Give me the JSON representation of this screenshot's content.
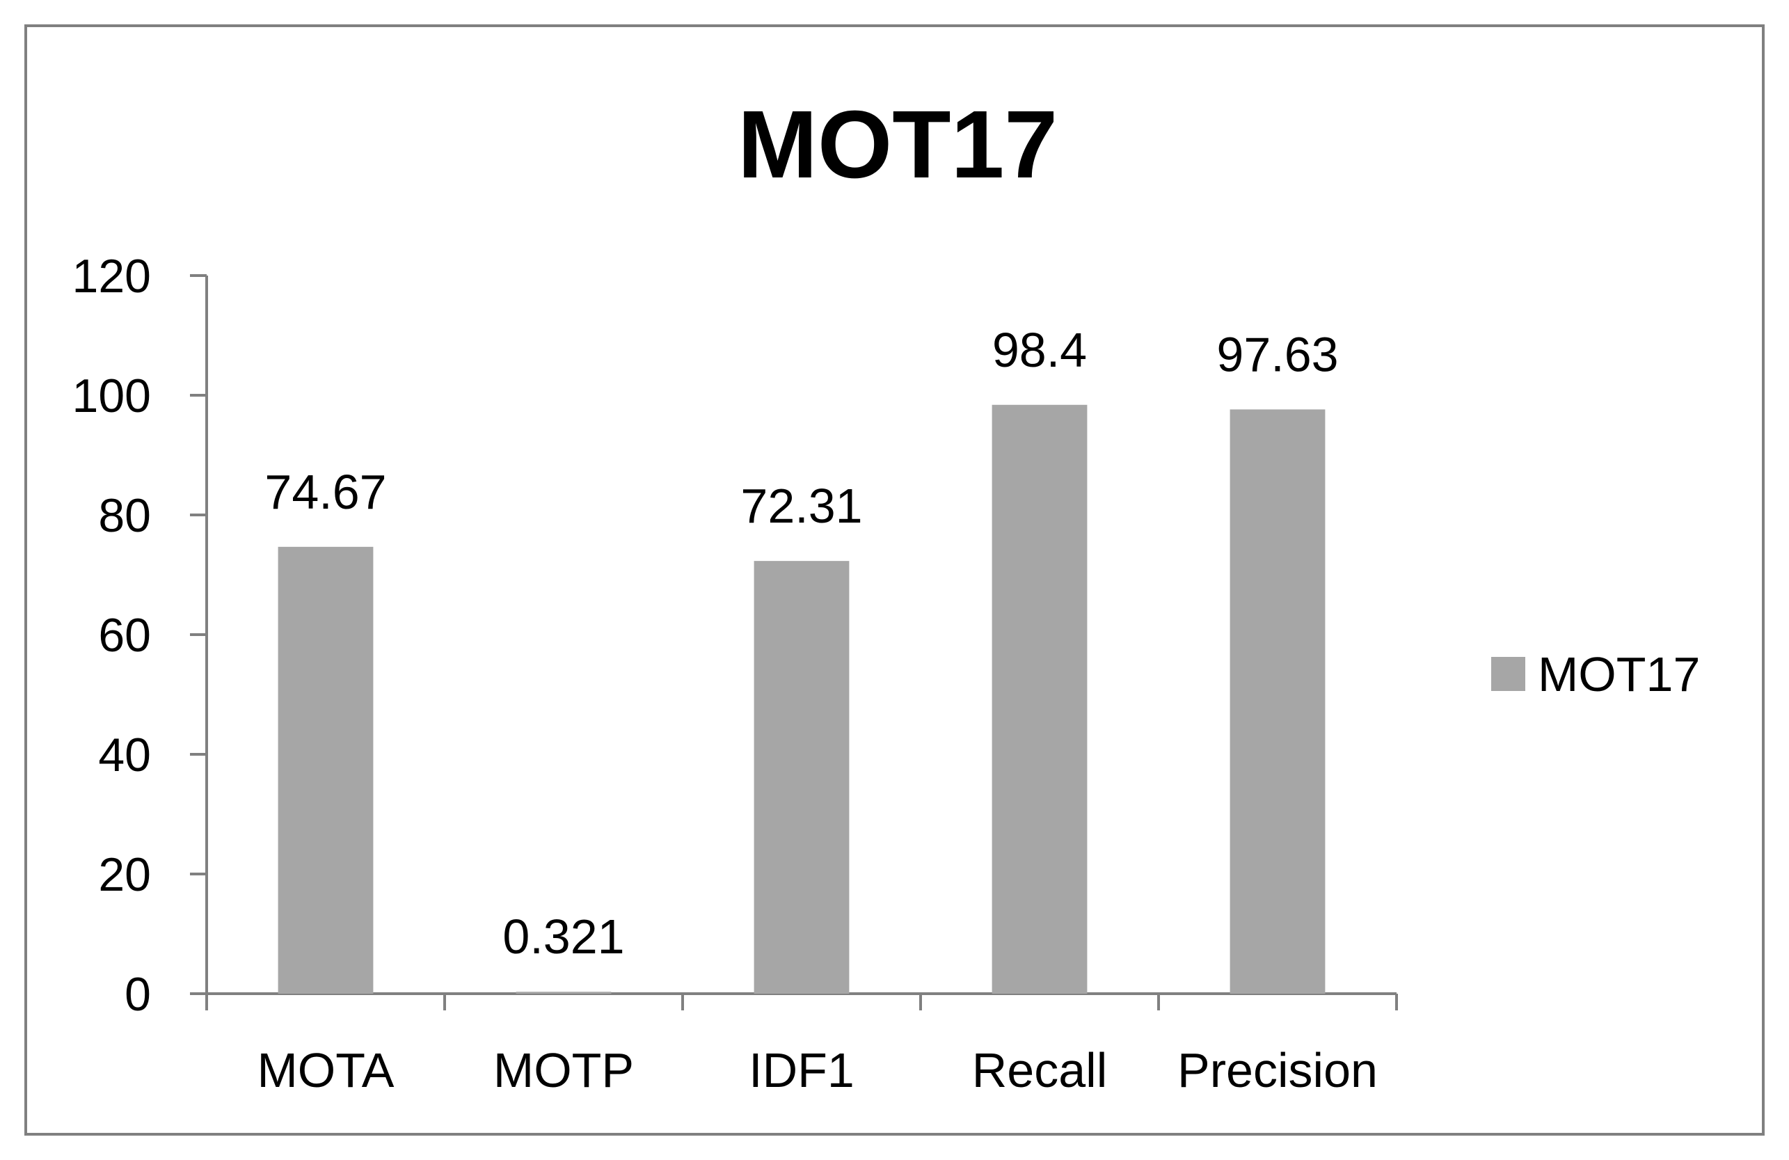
{
  "chart_data": {
    "type": "bar",
    "title": "MOT17",
    "categories": [
      "MOTA",
      "MOTP",
      "IDF1",
      "Recall",
      "Precision"
    ],
    "series": [
      {
        "name": "MOT17",
        "values": [
          74.67,
          0.321,
          72.31,
          98.4,
          97.63
        ],
        "labels": [
          "74.67",
          "0.321",
          "72.31",
          "98.4",
          "97.63"
        ],
        "color": "#a6a6a6"
      }
    ],
    "xlabel": "",
    "ylabel": "",
    "ylim": [
      0,
      120
    ],
    "yticks": [
      "0",
      "20",
      "40",
      "60",
      "80",
      "100",
      "120"
    ],
    "grid": false,
    "legend": "right"
  },
  "colors": {
    "bar": "#a6a6a6",
    "axis": "#808080",
    "frame": "#808080",
    "text": "#000000"
  }
}
